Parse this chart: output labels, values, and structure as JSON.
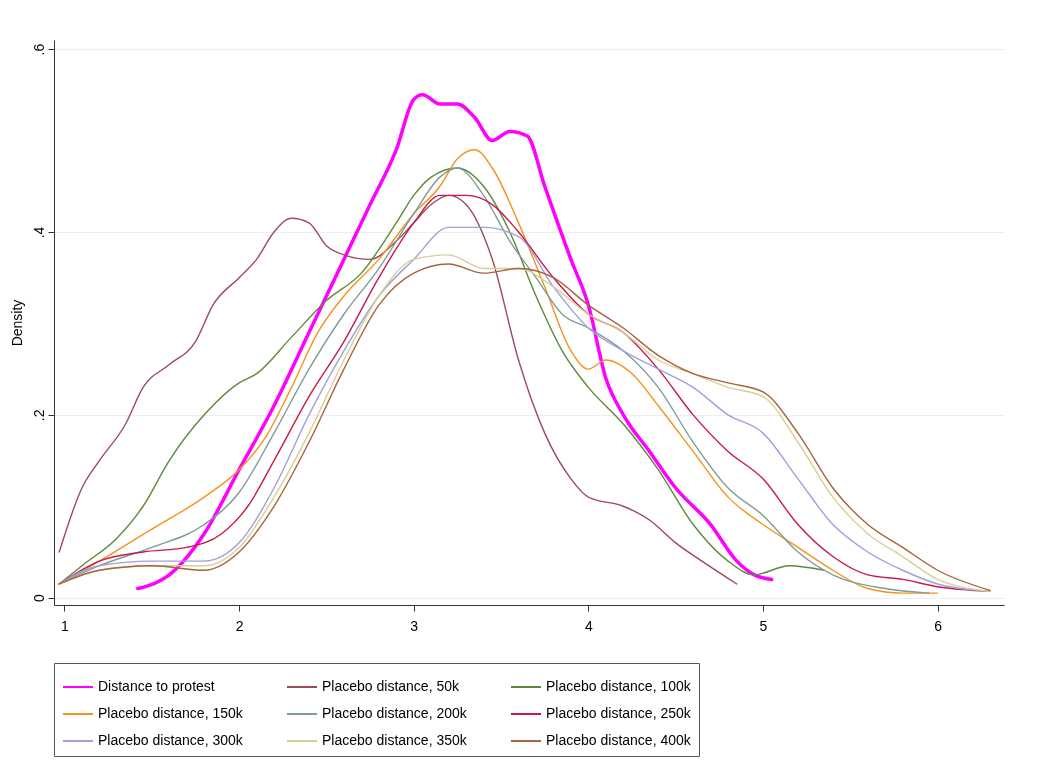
{
  "chart_data": {
    "type": "line",
    "ylabel": "Density",
    "xlim": [
      0.94,
      6.38
    ],
    "ylim": [
      -0.008,
      0.61
    ],
    "xticks": [
      1,
      2,
      3,
      4,
      5,
      6
    ],
    "yticks": [
      0,
      {
        "value": 0.2,
        "label": ".2"
      },
      {
        "value": 0.4,
        "label": ".4"
      },
      {
        "value": 0.6,
        "label": ".6"
      }
    ],
    "grid": "y",
    "legend": "bottom",
    "series": [
      {
        "name": "Distance to protest",
        "color": "#ff00ff",
        "x": [
          1.42,
          1.6,
          1.8,
          2.0,
          2.2,
          2.4,
          2.6,
          2.75,
          2.9,
          3.0,
          3.05,
          3.15,
          3.25,
          3.35,
          3.45,
          3.55,
          3.65,
          3.75,
          3.9,
          4.0,
          4.1,
          4.2,
          4.35,
          4.5,
          4.7,
          4.85,
          4.95,
          5.05
        ],
        "values": [
          0.01,
          0.025,
          0.07,
          0.14,
          0.21,
          0.29,
          0.37,
          0.43,
          0.49,
          0.545,
          0.55,
          0.54,
          0.54,
          0.525,
          0.5,
          0.51,
          0.505,
          0.45,
          0.37,
          0.32,
          0.24,
          0.2,
          0.16,
          0.12,
          0.08,
          0.04,
          0.025,
          0.02
        ]
      },
      {
        "name": "Placebo distance, 50k",
        "color": "#9e4b55",
        "x": [
          0.97,
          1.1,
          1.2,
          1.35,
          1.45,
          1.6,
          1.75,
          1.85,
          2.0,
          2.1,
          2.2,
          2.3,
          2.4,
          2.5,
          2.6,
          2.75,
          2.9,
          3.0,
          3.1,
          3.2,
          3.3,
          3.45,
          3.6,
          3.75,
          3.9,
          4.0,
          4.2,
          4.35,
          4.5,
          4.65,
          4.85
        ],
        "values": [
          0.05,
          0.12,
          0.15,
          0.19,
          0.23,
          0.255,
          0.28,
          0.32,
          0.35,
          0.37,
          0.4,
          0.415,
          0.41,
          0.385,
          0.375,
          0.37,
          0.39,
          0.41,
          0.43,
          0.44,
          0.43,
          0.37,
          0.26,
          0.18,
          0.13,
          0.11,
          0.1,
          0.085,
          0.06,
          0.04,
          0.015
        ]
      },
      {
        "name": "Placebo distance, 100k",
        "color": "#5c8a3c",
        "x": [
          0.97,
          1.1,
          1.3,
          1.45,
          1.6,
          1.8,
          2.0,
          2.1,
          2.3,
          2.5,
          2.7,
          2.9,
          3.0,
          3.1,
          3.25,
          3.4,
          3.55,
          3.7,
          3.85,
          4.0,
          4.2,
          4.4,
          4.6,
          4.8,
          4.95,
          5.15,
          5.35
        ],
        "values": [
          0.015,
          0.035,
          0.065,
          0.1,
          0.15,
          0.2,
          0.235,
          0.245,
          0.285,
          0.325,
          0.355,
          0.41,
          0.44,
          0.46,
          0.47,
          0.45,
          0.4,
          0.33,
          0.27,
          0.23,
          0.19,
          0.14,
          0.08,
          0.04,
          0.025,
          0.035,
          0.03
        ]
      },
      {
        "name": "Placebo distance, 150k",
        "color": "#f5921e",
        "x": [
          0.97,
          1.2,
          1.5,
          1.8,
          2.0,
          2.15,
          2.3,
          2.45,
          2.6,
          2.8,
          3.0,
          3.15,
          3.25,
          3.35,
          3.45,
          3.6,
          3.75,
          3.9,
          4.0,
          4.1,
          4.25,
          4.4,
          4.6,
          4.8,
          5.0,
          5.2,
          5.4,
          5.6,
          5.8,
          6.0
        ],
        "values": [
          0.015,
          0.04,
          0.075,
          0.11,
          0.14,
          0.175,
          0.23,
          0.29,
          0.33,
          0.37,
          0.42,
          0.45,
          0.48,
          0.49,
          0.47,
          0.41,
          0.34,
          0.27,
          0.25,
          0.26,
          0.245,
          0.21,
          0.16,
          0.11,
          0.08,
          0.055,
          0.03,
          0.01,
          0.005,
          0.005
        ]
      },
      {
        "name": "Placebo distance, 200k",
        "color": "#7f9c9a",
        "x": [
          0.97,
          1.2,
          1.5,
          1.8,
          2.0,
          2.2,
          2.4,
          2.6,
          2.8,
          3.0,
          3.15,
          3.25,
          3.4,
          3.55,
          3.7,
          3.85,
          4.0,
          4.2,
          4.4,
          4.6,
          4.8,
          5.0,
          5.2,
          5.4,
          5.7,
          5.95
        ],
        "values": [
          0.015,
          0.035,
          0.055,
          0.08,
          0.115,
          0.18,
          0.25,
          0.31,
          0.36,
          0.42,
          0.46,
          0.47,
          0.44,
          0.39,
          0.35,
          0.31,
          0.295,
          0.27,
          0.23,
          0.17,
          0.12,
          0.09,
          0.05,
          0.025,
          0.01,
          0.005
        ]
      },
      {
        "name": "Placebo distance, 250k",
        "color": "#c8194b",
        "x": [
          0.97,
          1.2,
          1.45,
          1.7,
          1.9,
          2.05,
          2.2,
          2.4,
          2.6,
          2.8,
          3.0,
          3.15,
          3.3,
          3.45,
          3.6,
          3.8,
          4.0,
          4.2,
          4.4,
          4.6,
          4.8,
          5.0,
          5.2,
          5.4,
          5.6,
          5.8,
          6.0,
          6.3
        ],
        "values": [
          0.015,
          0.04,
          0.05,
          0.055,
          0.07,
          0.1,
          0.15,
          0.22,
          0.28,
          0.35,
          0.41,
          0.44,
          0.44,
          0.43,
          0.4,
          0.35,
          0.31,
          0.29,
          0.25,
          0.2,
          0.16,
          0.13,
          0.08,
          0.045,
          0.025,
          0.02,
          0.012,
          0.007
        ]
      },
      {
        "name": "Placebo distance, 300k",
        "color": "#a0a0dc",
        "x": [
          0.97,
          1.2,
          1.5,
          1.8,
          2.0,
          2.2,
          2.4,
          2.6,
          2.8,
          3.0,
          3.2,
          3.4,
          3.6,
          3.8,
          4.0,
          4.2,
          4.4,
          4.6,
          4.8,
          5.0,
          5.2,
          5.4,
          5.6,
          5.8,
          6.0,
          6.3
        ],
        "values": [
          0.015,
          0.035,
          0.04,
          0.04,
          0.06,
          0.12,
          0.2,
          0.27,
          0.33,
          0.37,
          0.405,
          0.405,
          0.395,
          0.34,
          0.295,
          0.27,
          0.25,
          0.23,
          0.2,
          0.18,
          0.13,
          0.08,
          0.05,
          0.03,
          0.015,
          0.007
        ]
      },
      {
        "name": "Placebo distance, 350k",
        "color": "#d8cf96",
        "x": [
          0.97,
          1.2,
          1.5,
          1.8,
          2.0,
          2.2,
          2.4,
          2.6,
          2.8,
          3.0,
          3.2,
          3.4,
          3.6,
          3.8,
          4.0,
          4.2,
          4.4,
          4.6,
          4.8,
          5.0,
          5.2,
          5.4,
          5.6,
          5.8,
          6.0,
          6.3
        ],
        "values": [
          0.015,
          0.03,
          0.035,
          0.035,
          0.055,
          0.11,
          0.18,
          0.26,
          0.33,
          0.37,
          0.375,
          0.36,
          0.36,
          0.34,
          0.31,
          0.29,
          0.26,
          0.245,
          0.23,
          0.22,
          0.17,
          0.11,
          0.07,
          0.045,
          0.02,
          0.007
        ]
      },
      {
        "name": "Placebo distance, 400k",
        "color": "#a8643c",
        "x": [
          0.97,
          1.2,
          1.5,
          1.8,
          2.0,
          2.2,
          2.4,
          2.6,
          2.8,
          3.0,
          3.2,
          3.4,
          3.6,
          3.8,
          4.0,
          4.2,
          4.4,
          4.6,
          4.8,
          5.0,
          5.2,
          5.4,
          5.6,
          5.8,
          6.0,
          6.3
        ],
        "values": [
          0.015,
          0.03,
          0.035,
          0.03,
          0.05,
          0.1,
          0.17,
          0.25,
          0.32,
          0.355,
          0.365,
          0.355,
          0.36,
          0.35,
          0.32,
          0.295,
          0.265,
          0.245,
          0.235,
          0.225,
          0.18,
          0.12,
          0.08,
          0.055,
          0.03,
          0.008
        ]
      }
    ]
  }
}
